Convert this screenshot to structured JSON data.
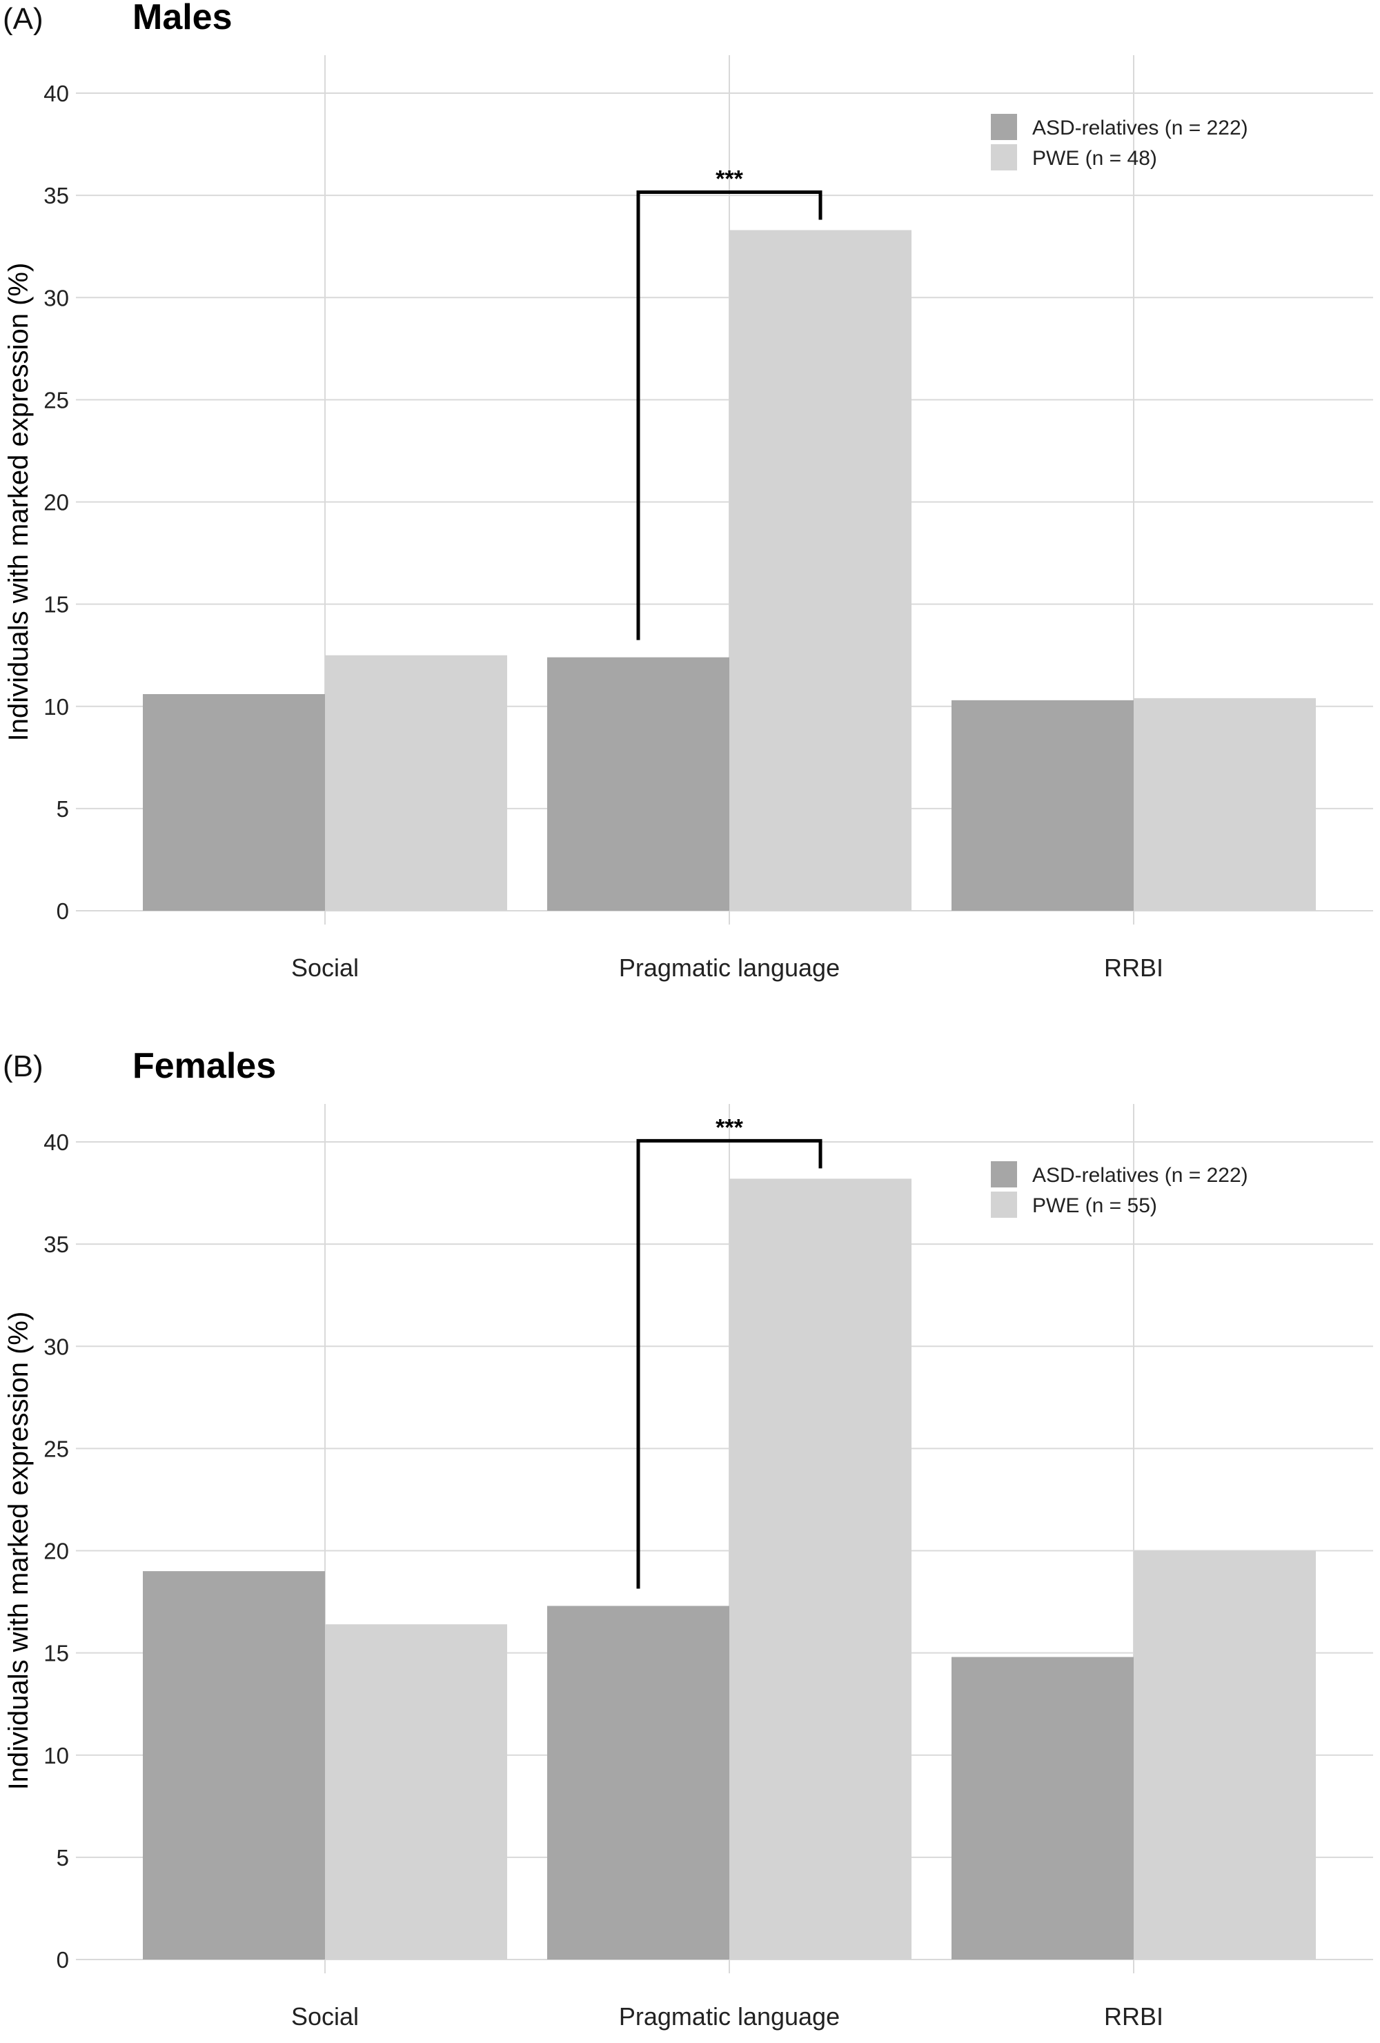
{
  "colors": {
    "asd": "#a6a6a6",
    "pwe": "#d3d3d3",
    "grid": "#d9d9d9",
    "bracket": "#000000"
  },
  "chart_data": [
    {
      "type": "bar",
      "panel": "(A)",
      "title": "Males",
      "xlabel": "",
      "ylabel": "Individuals with marked expression (%)",
      "ylim": [
        0,
        40
      ],
      "yticks": [
        0,
        5,
        10,
        15,
        20,
        25,
        30,
        35,
        40
      ],
      "grid": true,
      "legend_position": "top-right",
      "categories": [
        "Social",
        "Pragmatic language",
        "RRBI"
      ],
      "series": [
        {
          "name": "ASD-relatives (n = 222)",
          "color_key": "asd",
          "values": [
            10.6,
            12.4,
            10.3
          ]
        },
        {
          "name": "PWE (n = 48)",
          "color_key": "pwe",
          "values": [
            12.5,
            33.3,
            10.4
          ]
        }
      ],
      "significance": [
        {
          "category_index": 1,
          "label": "***"
        }
      ]
    },
    {
      "type": "bar",
      "panel": "(B)",
      "title": "Females",
      "xlabel": "",
      "ylabel": "Individuals with marked expression (%)",
      "ylim": [
        0,
        40
      ],
      "yticks": [
        0,
        5,
        10,
        15,
        20,
        25,
        30,
        35,
        40
      ],
      "grid": true,
      "legend_position": "top-right",
      "categories": [
        "Social",
        "Pragmatic language",
        "RRBI"
      ],
      "series": [
        {
          "name": "ASD-relatives (n = 222)",
          "color_key": "asd",
          "values": [
            19.0,
            17.3,
            14.8
          ]
        },
        {
          "name": "PWE (n = 55)",
          "color_key": "pwe",
          "values": [
            16.4,
            38.2,
            20.0
          ]
        }
      ],
      "significance": [
        {
          "category_index": 1,
          "label": "***"
        }
      ]
    }
  ]
}
